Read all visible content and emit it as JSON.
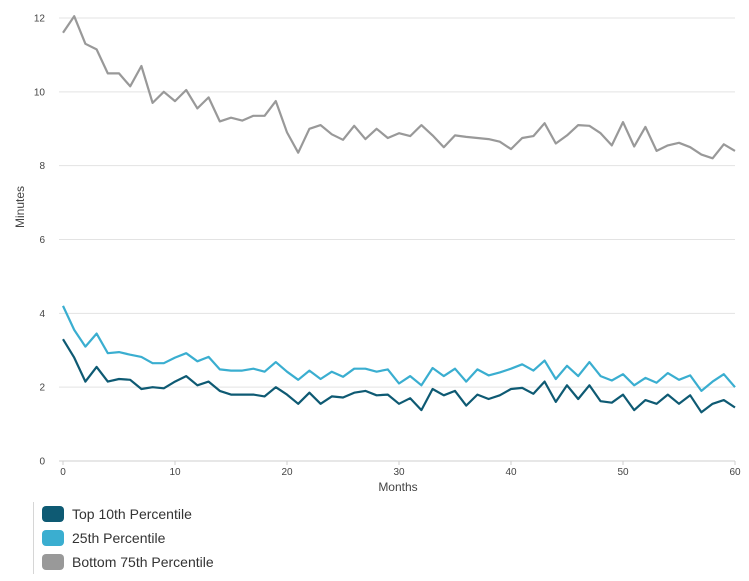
{
  "chart_data": {
    "type": "line",
    "xlabel": "Months",
    "ylabel": "Minutes",
    "xlim": [
      0,
      60
    ],
    "ylim": [
      0,
      12
    ],
    "xticks": [
      0,
      10,
      20,
      30,
      40,
      50,
      60
    ],
    "yticks": [
      0,
      2,
      4,
      6,
      8,
      10,
      12
    ],
    "grid": "horizontal",
    "legend_position": "bottom-left",
    "x": [
      0,
      1,
      2,
      3,
      4,
      5,
      6,
      7,
      8,
      9,
      10,
      11,
      12,
      13,
      14,
      15,
      16,
      17,
      18,
      19,
      20,
      21,
      22,
      23,
      24,
      25,
      26,
      27,
      28,
      29,
      30,
      31,
      32,
      33,
      34,
      35,
      36,
      37,
      38,
      39,
      40,
      41,
      42,
      43,
      44,
      45,
      46,
      47,
      48,
      49,
      50,
      51,
      52,
      53,
      54,
      55,
      56,
      57,
      58,
      59,
      60
    ],
    "series": [
      {
        "name": "Top 10th Percentile",
        "color": "#0e5a73",
        "values": [
          3.3,
          2.8,
          2.15,
          2.55,
          2.15,
          2.22,
          2.2,
          1.95,
          2.0,
          1.97,
          2.15,
          2.3,
          2.05,
          2.15,
          1.9,
          1.8,
          1.8,
          1.8,
          1.75,
          2.0,
          1.8,
          1.55,
          1.85,
          1.55,
          1.75,
          1.72,
          1.85,
          1.9,
          1.78,
          1.8,
          1.55,
          1.7,
          1.38,
          1.95,
          1.78,
          1.9,
          1.5,
          1.8,
          1.68,
          1.78,
          1.95,
          1.98,
          1.82,
          2.15,
          1.6,
          2.05,
          1.68,
          2.05,
          1.62,
          1.58,
          1.8,
          1.38,
          1.65,
          1.55,
          1.8,
          1.55,
          1.78,
          1.32,
          1.55,
          1.65,
          1.45
        ]
      },
      {
        "name": "25th Percentile",
        "color": "#3aaed0",
        "values": [
          4.2,
          3.55,
          3.1,
          3.45,
          2.92,
          2.95,
          2.88,
          2.82,
          2.65,
          2.65,
          2.8,
          2.92,
          2.7,
          2.82,
          2.48,
          2.45,
          2.45,
          2.5,
          2.42,
          2.68,
          2.42,
          2.2,
          2.45,
          2.22,
          2.42,
          2.28,
          2.5,
          2.5,
          2.42,
          2.48,
          2.1,
          2.3,
          2.05,
          2.52,
          2.3,
          2.5,
          2.15,
          2.48,
          2.32,
          2.4,
          2.5,
          2.62,
          2.45,
          2.72,
          2.22,
          2.58,
          2.3,
          2.68,
          2.3,
          2.18,
          2.35,
          2.05,
          2.25,
          2.12,
          2.38,
          2.2,
          2.32,
          1.9,
          2.15,
          2.35,
          2.0
        ]
      },
      {
        "name": "Bottom 75th Percentile",
        "color": "#999999",
        "values": [
          11.6,
          12.05,
          11.3,
          11.15,
          10.5,
          10.5,
          10.15,
          10.7,
          9.7,
          10.0,
          9.75,
          10.05,
          9.55,
          9.85,
          9.2,
          9.3,
          9.22,
          9.35,
          9.35,
          9.75,
          8.9,
          8.35,
          9.0,
          9.1,
          8.85,
          8.7,
          9.08,
          8.72,
          9.0,
          8.75,
          8.88,
          8.8,
          9.1,
          8.82,
          8.5,
          8.82,
          8.78,
          8.75,
          8.72,
          8.65,
          8.45,
          8.75,
          8.8,
          9.15,
          8.6,
          8.82,
          9.1,
          9.08,
          8.88,
          8.55,
          9.18,
          8.52,
          9.05,
          8.4,
          8.55,
          8.62,
          8.5,
          8.3,
          8.2,
          8.58,
          8.4
        ]
      }
    ]
  }
}
